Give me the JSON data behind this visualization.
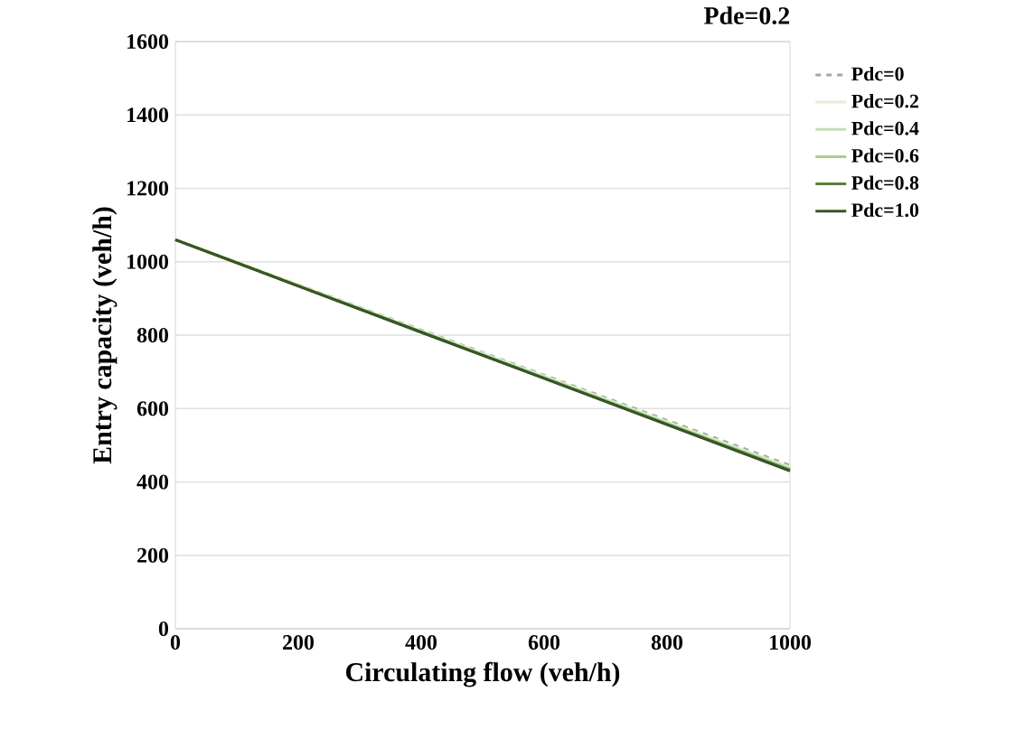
{
  "chart_data": {
    "type": "line",
    "title": "Pde=0.2",
    "xlabel": "Circulating flow (veh/h)",
    "ylabel": "Entry capacity (veh/h)",
    "x": [
      0,
      200,
      400,
      600,
      800,
      1000
    ],
    "series": [
      {
        "name": "Pdc=0",
        "color": "#a6a6a6",
        "line_style": "dashed",
        "values": [
          1060,
          937,
          814,
          691,
          568,
          445
        ]
      },
      {
        "name": "Pdc=0.2",
        "color": "#e2efd9",
        "values": [
          1060,
          936,
          812,
          688,
          564,
          440
        ]
      },
      {
        "name": "Pdc=0.4",
        "color": "#c5e0b3",
        "values": [
          1060,
          935,
          810,
          686,
          561,
          437
        ]
      },
      {
        "name": "Pdc=0.6",
        "color": "#a9d08e",
        "values": [
          1060,
          935,
          809,
          684,
          559,
          434
        ]
      },
      {
        "name": "Pdc=0.8",
        "color": "#548235",
        "values": [
          1060,
          934,
          808,
          683,
          557,
          432
        ]
      },
      {
        "name": "Pdc=1.0",
        "color": "#375623",
        "values": [
          1060,
          934,
          808,
          682,
          556,
          430
        ]
      }
    ],
    "xlim": [
      0,
      1000
    ],
    "ylim": [
      0,
      1600
    ],
    "xticks": [
      0,
      200,
      400,
      600,
      800,
      1000
    ],
    "yticks": [
      0,
      200,
      400,
      600,
      800,
      1000,
      1200,
      1400,
      1600
    ],
    "grid": "y",
    "legend": "right",
    "marker": "none"
  }
}
